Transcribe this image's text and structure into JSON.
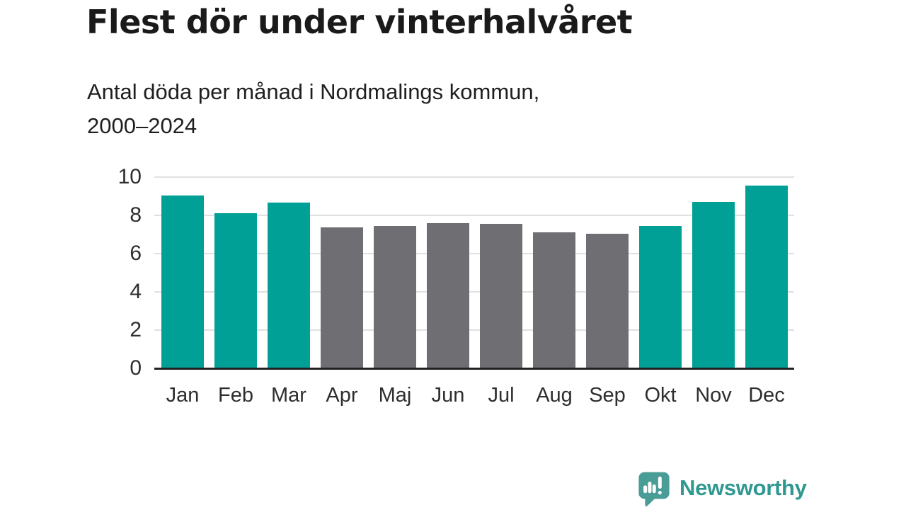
{
  "title": "Flest dör under vinterhalvåret",
  "subtitle": {
    "lines": [
      "Antal döda per månad i Nordmalings kommun,",
      "2000–2024"
    ]
  },
  "chart_data": {
    "type": "bar",
    "categories": [
      "Jan",
      "Feb",
      "Mar",
      "Apr",
      "Maj",
      "Jun",
      "Jul",
      "Aug",
      "Sep",
      "Okt",
      "Nov",
      "Dec"
    ],
    "values": [
      9.04,
      8.12,
      8.68,
      7.36,
      7.44,
      7.6,
      7.56,
      7.12,
      7.04,
      7.44,
      8.72,
      9.56
    ],
    "highlighted": [
      true,
      true,
      true,
      false,
      false,
      false,
      false,
      false,
      false,
      true,
      true,
      true
    ],
    "title": "Flest dör under vinterhalvåret",
    "xlabel": "",
    "ylabel": "",
    "ylim": [
      0,
      10
    ],
    "yticks": [
      0,
      2,
      4,
      6,
      8,
      10
    ],
    "grid": true,
    "legend": false,
    "colors": {
      "highlight_bar": "#00a096",
      "base_bar": "#6e6e73",
      "gridline": "#e0e0e0",
      "axis_line": "#222222",
      "tick_text": "#2e2e2e"
    }
  },
  "footer": {
    "brand": "Newsworthy",
    "brand_text_color": "#2f9890",
    "icon": "newsworthy-chart-bubble-icon",
    "icon_color": "#4a9d96"
  }
}
